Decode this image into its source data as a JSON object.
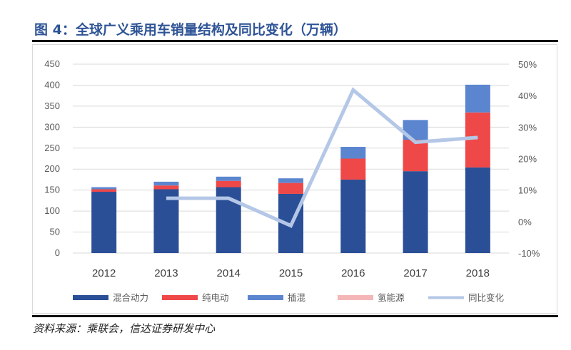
{
  "title": "图 4：全球广义乘用车销量结构及同比变化（万辆）",
  "source": "资料来源：乘联会，信达证券研发中心",
  "chart_data": {
    "type": "bar",
    "stacked": true,
    "categories": [
      "2012",
      "2013",
      "2014",
      "2015",
      "2016",
      "2017",
      "2018"
    ],
    "series": [
      {
        "name": "混合动力",
        "type": "bar",
        "axis": "left",
        "color": "#2b4f96",
        "values": [
          146,
          152,
          157,
          141,
          175,
          195,
          204
        ]
      },
      {
        "name": "纯电动",
        "type": "bar",
        "axis": "left",
        "color": "#ef4848",
        "values": [
          6,
          9,
          15,
          26,
          50,
          75,
          131
        ]
      },
      {
        "name": "插混",
        "type": "bar",
        "axis": "left",
        "color": "#5b86cf",
        "values": [
          5,
          9,
          10,
          11,
          28,
          47,
          66
        ]
      },
      {
        "name": "氢能源",
        "type": "bar",
        "axis": "left",
        "color": "#f4b6b6",
        "values": [
          0,
          0,
          0,
          0,
          0,
          0,
          0
        ]
      },
      {
        "name": "同比变化",
        "type": "line",
        "axis": "right",
        "color": "#b4c7e7",
        "values": [
          null,
          7.4,
          7.4,
          -1.3,
          41.8,
          25.2,
          26.7
        ]
      }
    ],
    "left_axis": {
      "ylim": [
        0,
        450
      ],
      "ticks": [
        "0",
        "50",
        "100",
        "150",
        "200",
        "250",
        "300",
        "350",
        "400",
        "450"
      ]
    },
    "right_axis": {
      "ylim": [
        -10,
        50
      ],
      "ticks": [
        "-10%",
        "0%",
        "10%",
        "20%",
        "30%",
        "40%",
        "50%"
      ]
    },
    "grid": true,
    "legend": "bottom"
  }
}
